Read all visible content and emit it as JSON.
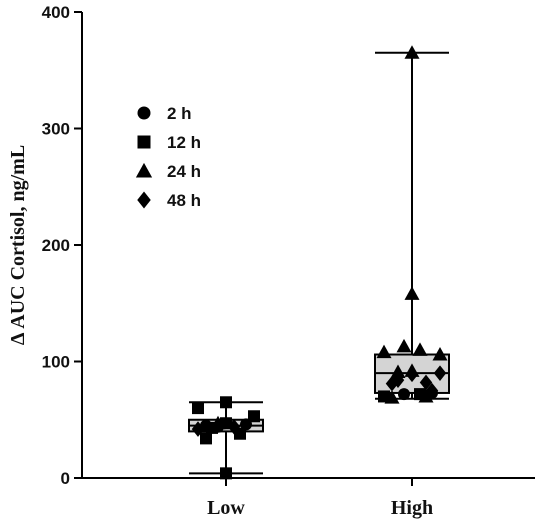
{
  "chart_data": {
    "type": "box",
    "title": "",
    "xlabel": "",
    "ylabel": "Δ AUC Cortisol, ng/mL",
    "ylim": [
      0,
      400
    ],
    "yticks": [
      0,
      100,
      200,
      300,
      400
    ],
    "categories": [
      "Low",
      "High"
    ],
    "grid": false,
    "legend_placement": "top-left",
    "box_fill": "#d4d4d4",
    "line_color": "#000000",
    "legend": [
      {
        "label": "2 h",
        "marker": "circle"
      },
      {
        "label": "12 h",
        "marker": "square"
      },
      {
        "label": "24 h",
        "marker": "triangle"
      },
      {
        "label": "48 h",
        "marker": "diamond"
      }
    ],
    "boxes": [
      {
        "category": "Low",
        "min": 4,
        "q1": 40,
        "median": 45,
        "q3": 50,
        "max": 65,
        "points": [
          {
            "time": "2 h",
            "y": 45
          },
          {
            "time": "2 h",
            "y": 46
          },
          {
            "time": "2 h",
            "y": 44
          },
          {
            "time": "12 h",
            "y": 65
          },
          {
            "time": "12 h",
            "y": 60
          },
          {
            "time": "12 h",
            "y": 53
          },
          {
            "time": "12 h",
            "y": 47
          },
          {
            "time": "12 h",
            "y": 43
          },
          {
            "time": "12 h",
            "y": 38
          },
          {
            "time": "12 h",
            "y": 34
          },
          {
            "time": "12 h",
            "y": 4
          },
          {
            "time": "24 h",
            "y": 47
          },
          {
            "time": "48 h",
            "y": 44
          },
          {
            "time": "48 h",
            "y": 42
          }
        ]
      },
      {
        "category": "High",
        "min": 68,
        "q1": 73,
        "median": 90,
        "q3": 106,
        "max": 365,
        "points": [
          {
            "time": "24 h",
            "y": 365
          },
          {
            "time": "24 h",
            "y": 158
          },
          {
            "time": "24 h",
            "y": 113
          },
          {
            "time": "24 h",
            "y": 110
          },
          {
            "time": "24 h",
            "y": 108
          },
          {
            "time": "24 h",
            "y": 106
          },
          {
            "time": "24 h",
            "y": 92
          },
          {
            "time": "24 h",
            "y": 91
          },
          {
            "time": "24 h",
            "y": 70
          },
          {
            "time": "24 h",
            "y": 69
          },
          {
            "time": "2 h",
            "y": 73
          },
          {
            "time": "2 h",
            "y": 72
          },
          {
            "time": "12 h",
            "y": 72
          },
          {
            "time": "12 h",
            "y": 70
          },
          {
            "time": "48 h",
            "y": 90
          },
          {
            "time": "48 h",
            "y": 89
          },
          {
            "time": "48 h",
            "y": 84
          },
          {
            "time": "48 h",
            "y": 82
          },
          {
            "time": "48 h",
            "y": 81
          },
          {
            "time": "48 h",
            "y": 75
          }
        ]
      }
    ]
  }
}
